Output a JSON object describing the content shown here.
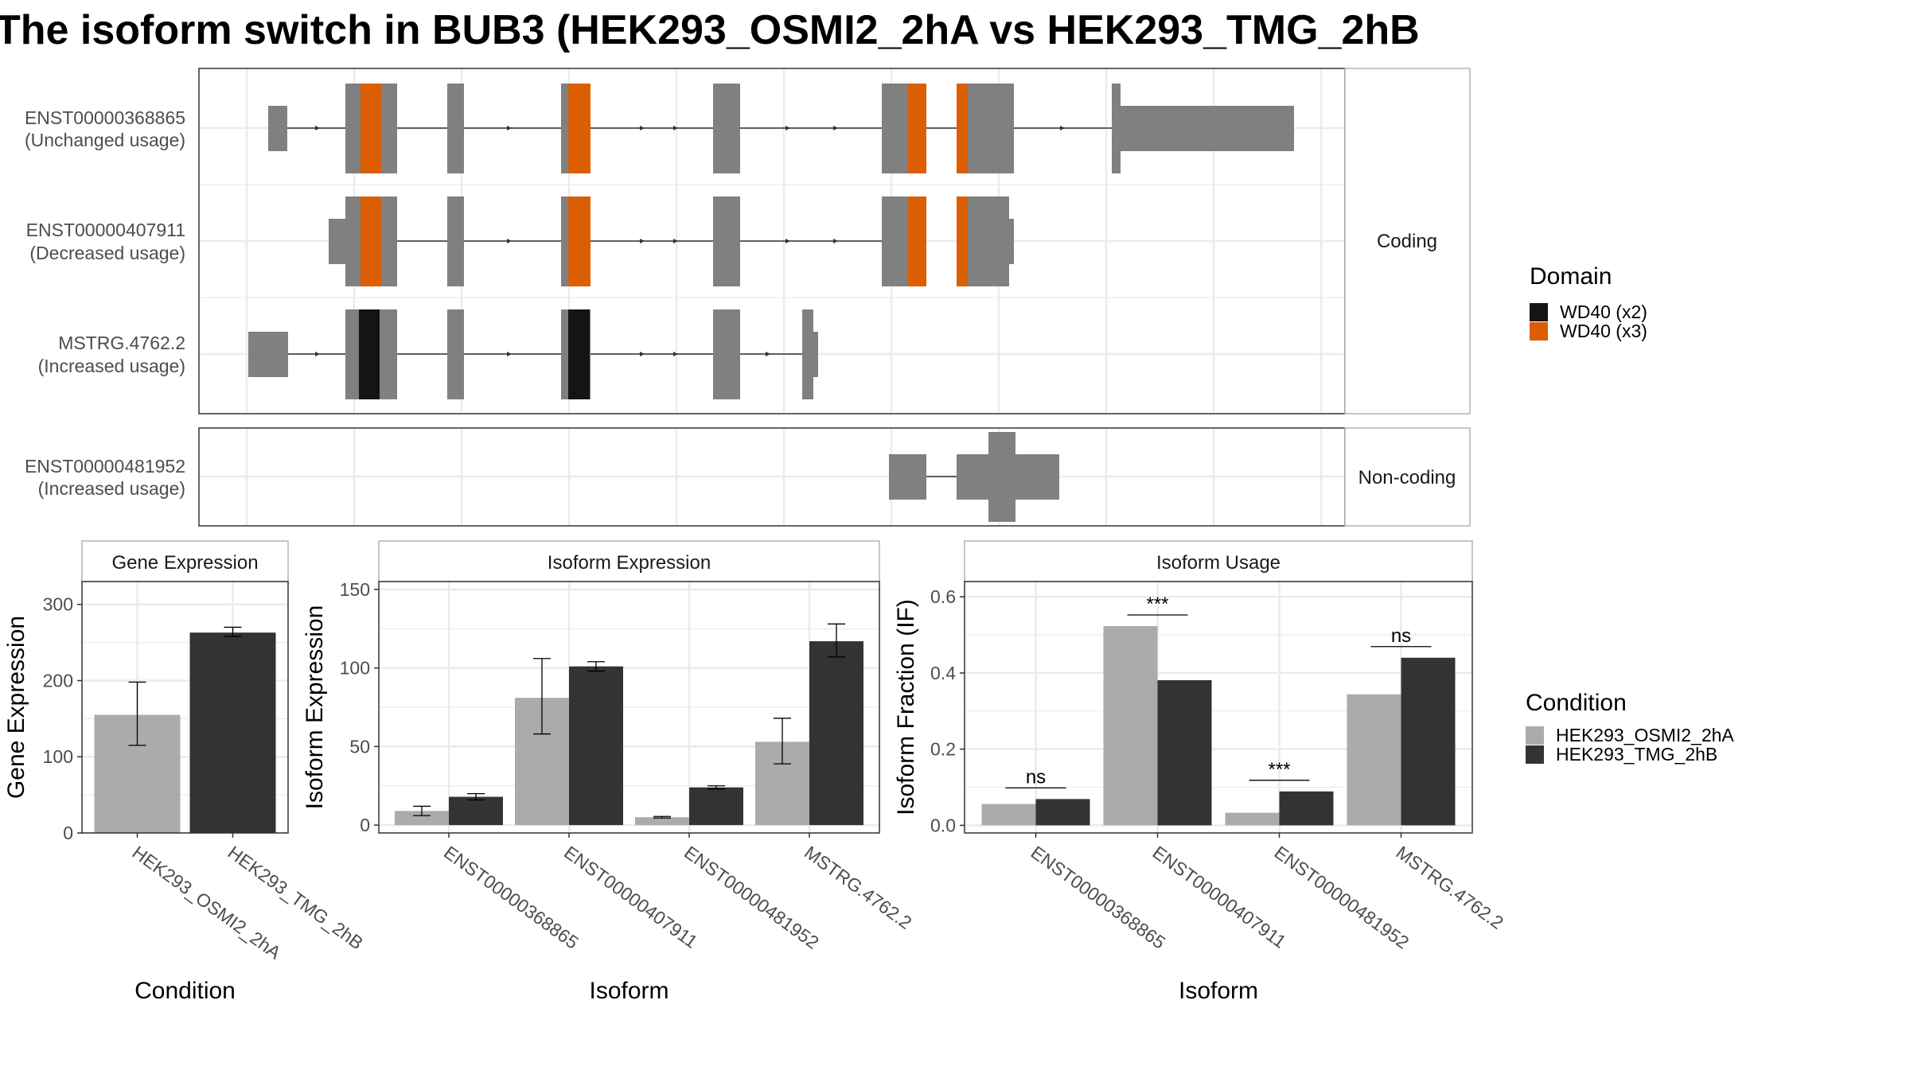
{
  "title": "The isoform switch in BUB3 (HEK293_OSMI2_2hA vs HEK293_TMG_2hB",
  "colors": {
    "exon": "#808080",
    "wd40_x2": "#141414",
    "wd40_x3": "#DB5F02",
    "cond_a": "#ABABAB",
    "cond_b": "#333333",
    "grid": "#EBEBEB"
  },
  "structure": {
    "coding_label": "Coding",
    "noncoding_label": "Non-coding",
    "transcripts": [
      {
        "id": "ENST00000368865",
        "usage": "(Unchanged usage)",
        "type": "Coding"
      },
      {
        "id": "ENST00000407911",
        "usage": "(Decreased usage)",
        "type": "Coding"
      },
      {
        "id": "MSTRG.4762.2",
        "usage": "(Increased usage)",
        "type": "Coding"
      },
      {
        "id": "ENST00000481952",
        "usage": "(Increased usage)",
        "type": "Non-coding"
      }
    ],
    "domain_legend": {
      "title": "Domain",
      "items": [
        {
          "label": "WD40 (x2)",
          "color": "#141414"
        },
        {
          "label": "WD40 (x3)",
          "color": "#DB5F02"
        }
      ]
    }
  },
  "condition_legend": {
    "title": "Condition",
    "items": [
      {
        "label": "HEK293_OSMI2_2hA",
        "color": "#ABABAB"
      },
      {
        "label": "HEK293_TMG_2hB",
        "color": "#333333"
      }
    ]
  },
  "chart_data": [
    {
      "type": "bar",
      "title": "Gene Expression",
      "xlabel": "Condition",
      "ylabel": "Gene Expression",
      "categories": [
        "HEK293_OSMI2_2hA",
        "HEK293_TMG_2hB"
      ],
      "values": [
        155,
        263
      ],
      "error_low": [
        115,
        258
      ],
      "error_high": [
        198,
        270
      ],
      "ylim": [
        0,
        330
      ],
      "yticks": [
        0,
        100,
        200,
        300
      ],
      "grid": true
    },
    {
      "type": "bar",
      "title": "Isoform Expression",
      "xlabel": "Isoform",
      "ylabel": "Isoform Expression",
      "categories": [
        "ENST00000368865",
        "ENST00000407911",
        "ENST00000481952",
        "MSTRG.4762.2"
      ],
      "series": [
        {
          "name": "HEK293_OSMI2_2hA",
          "values": [
            9,
            81,
            5,
            53
          ],
          "error_low": [
            6,
            58,
            4.5,
            39
          ],
          "error_high": [
            12,
            106,
            5.5,
            68
          ]
        },
        {
          "name": "HEK293_TMG_2hB",
          "values": [
            18,
            101,
            24,
            117
          ],
          "error_low": [
            16,
            98,
            23,
            107
          ],
          "error_high": [
            20,
            104,
            25,
            128
          ]
        }
      ],
      "ylim": [
        -5,
        155
      ],
      "yticks": [
        0,
        50,
        100,
        150
      ],
      "grid": true
    },
    {
      "type": "bar",
      "title": "Isoform Usage",
      "xlabel": "Isoform",
      "ylabel": "Isoform Fraction (IF)",
      "categories": [
        "ENST00000368865",
        "ENST00000407911",
        "ENST00000481952",
        "MSTRG.4762.2"
      ],
      "series": [
        {
          "name": "HEK293_OSMI2_2hA",
          "values": [
            0.056,
            0.523,
            0.033,
            0.344
          ]
        },
        {
          "name": "HEK293_TMG_2hB",
          "values": [
            0.069,
            0.381,
            0.089,
            0.44
          ]
        }
      ],
      "significance": [
        "ns",
        "***",
        "***",
        "ns"
      ],
      "ylim": [
        -0.02,
        0.64
      ],
      "yticks": [
        0.0,
        0.2,
        0.4,
        0.6
      ],
      "ytick_labels": [
        "0.0",
        "0.2",
        "0.4",
        "0.6"
      ],
      "grid": true
    }
  ]
}
